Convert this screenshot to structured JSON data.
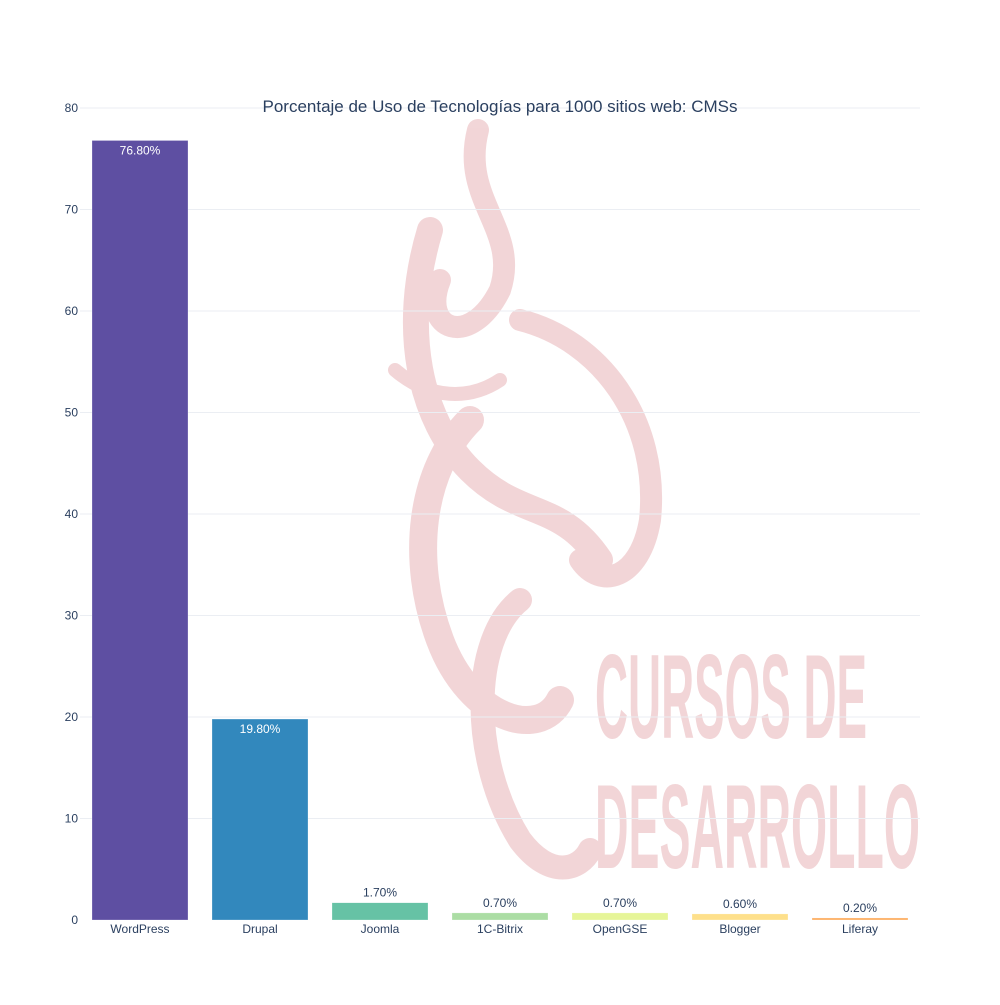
{
  "chart_data": {
    "type": "bar",
    "title": "Porcentaje de Uso de Tecnologías para 1000 sitios web: CMSs",
    "xlabel": "",
    "ylabel": "",
    "categories": [
      "WordPress",
      "Drupal",
      "Joomla",
      "1C-Bitrix",
      "OpenGSE",
      "Blogger",
      "Liferay"
    ],
    "values": [
      76.8,
      19.8,
      1.7,
      0.7,
      0.7,
      0.6,
      0.2
    ],
    "data_labels": [
      "76.80%",
      "19.80%",
      "1.70%",
      "0.70%",
      "0.70%",
      "0.60%",
      "0.20%"
    ],
    "colors": [
      "#5e4fa2",
      "#3288bd",
      "#66c2a5",
      "#abdda4",
      "#e6f598",
      "#fee08b",
      "#fdae61"
    ],
    "ylim": [
      0,
      80
    ],
    "yticks": [
      0,
      10,
      20,
      30,
      40,
      50,
      60,
      70,
      80
    ],
    "grid": true,
    "legend": "none"
  },
  "watermark": {
    "line1": "CURSOS DE",
    "line2": "DESARROLLO",
    "color": "#e8b4b8"
  }
}
